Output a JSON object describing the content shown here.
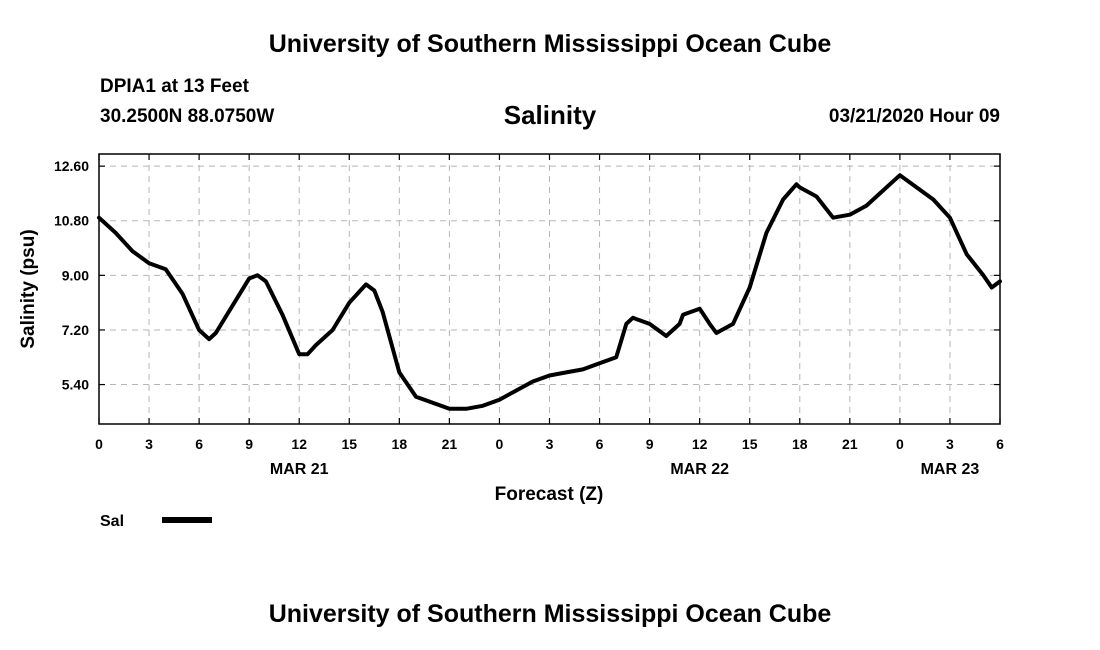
{
  "header": {
    "title": "University of Southern Mississippi Ocean Cube",
    "station": "DPIA1 at 13 Feet",
    "location": "30.2500N 88.0750W",
    "variable": "Salinity",
    "datetime": "03/21/2020 Hour 09"
  },
  "footer": {
    "title": "University of Southern Mississippi Ocean Cube"
  },
  "chart_data": {
    "type": "line",
    "title": "Salinity",
    "xlabel": "Forecast (Z)",
    "ylabel": "Salinity (psu)",
    "xlim": [
      0,
      54
    ],
    "ylim": [
      4.1,
      13.0
    ],
    "grid": true,
    "x_unit": "hours since 2020-03-21 00Z",
    "x_ticks": [
      {
        "x": 0,
        "label": "0"
      },
      {
        "x": 3,
        "label": "3"
      },
      {
        "x": 6,
        "label": "6"
      },
      {
        "x": 9,
        "label": "9"
      },
      {
        "x": 12,
        "label": "12"
      },
      {
        "x": 15,
        "label": "15"
      },
      {
        "x": 18,
        "label": "18"
      },
      {
        "x": 21,
        "label": "21"
      },
      {
        "x": 24,
        "label": "0"
      },
      {
        "x": 27,
        "label": "3"
      },
      {
        "x": 30,
        "label": "6"
      },
      {
        "x": 33,
        "label": "9"
      },
      {
        "x": 36,
        "label": "12"
      },
      {
        "x": 39,
        "label": "15"
      },
      {
        "x": 42,
        "label": "18"
      },
      {
        "x": 45,
        "label": "21"
      },
      {
        "x": 48,
        "label": "0"
      },
      {
        "x": 51,
        "label": "3"
      },
      {
        "x": 54,
        "label": "6"
      }
    ],
    "date_labels": [
      {
        "x": 12,
        "label": "MAR 21"
      },
      {
        "x": 36,
        "label": "MAR 22"
      },
      {
        "x": 51,
        "label": "MAR 23"
      }
    ],
    "y_ticks": [
      {
        "y": 12.6,
        "label": "12.60"
      },
      {
        "y": 10.8,
        "label": "10.80"
      },
      {
        "y": 9.0,
        "label": "9.00"
      },
      {
        "y": 7.2,
        "label": "7.20"
      },
      {
        "y": 5.4,
        "label": "5.40"
      }
    ],
    "legend": {
      "position": "bottom-left",
      "entries": [
        {
          "name": "Sal"
        }
      ]
    },
    "series": [
      {
        "name": "Sal",
        "x": [
          0,
          1,
          2,
          3,
          4,
          5,
          6,
          6.6,
          7,
          8,
          9,
          9.5,
          10,
          11,
          12,
          12.5,
          13,
          14,
          15,
          16,
          16.5,
          17,
          18,
          19,
          20,
          21,
          22,
          23,
          24,
          25,
          26,
          27,
          28,
          29,
          30,
          31,
          31.6,
          32,
          33,
          34,
          34.8,
          35,
          36,
          36.6,
          37,
          38,
          39,
          40,
          41,
          41.8,
          42,
          43,
          44,
          45,
          46,
          46.6,
          47,
          48,
          49,
          50,
          51,
          52,
          53,
          53.5,
          54
        ],
        "values": [
          10.9,
          10.4,
          9.8,
          9.4,
          9.2,
          8.4,
          7.2,
          6.9,
          7.1,
          8.0,
          8.9,
          9.0,
          8.8,
          7.7,
          6.4,
          6.4,
          6.7,
          7.2,
          8.1,
          8.7,
          8.5,
          7.8,
          5.8,
          5.0,
          4.8,
          4.6,
          4.6,
          4.7,
          4.9,
          5.2,
          5.5,
          5.7,
          5.8,
          5.9,
          6.1,
          6.3,
          7.4,
          7.6,
          7.4,
          7.0,
          7.4,
          7.7,
          7.9,
          7.4,
          7.1,
          7.4,
          8.6,
          10.4,
          11.5,
          12.0,
          11.9,
          11.6,
          10.9,
          11.0,
          11.3,
          11.6,
          11.8,
          12.3,
          11.9,
          11.5,
          10.9,
          9.7,
          9.0,
          8.6,
          8.8
        ]
      }
    ]
  }
}
